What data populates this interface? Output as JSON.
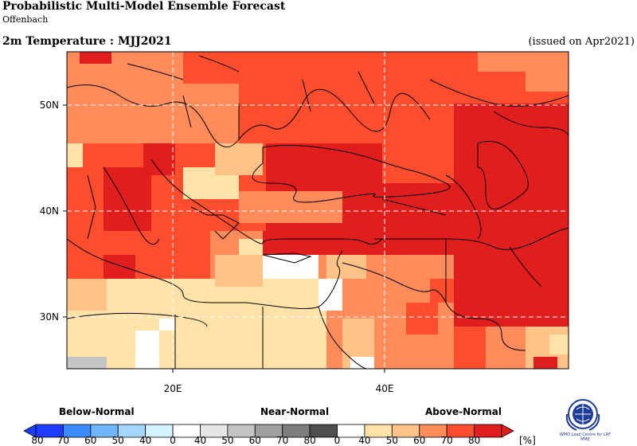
{
  "header": {
    "title": "Probabilistic Multi-Model Ensemble Forecast",
    "subtitle": "Offenbach",
    "variable": "2m Temperature : MJJ2021",
    "issued": "(issued on Apr2021)"
  },
  "map": {
    "region": "Eastern Mediterranean / Middle East",
    "lon_ticks": [
      "20E",
      "40E"
    ],
    "lat_ticks": [
      "50N",
      "40N",
      "30N"
    ],
    "grid": true
  },
  "legend": {
    "categories": [
      "Below-Normal",
      "Near-Normal",
      "Above-Normal"
    ],
    "below_labels": [
      "80",
      "70",
      "60",
      "50",
      "40"
    ],
    "near_labels": [
      "0",
      "40",
      "50",
      "60",
      "70",
      "80"
    ],
    "above_labels": [
      "0",
      "40",
      "50",
      "60",
      "70",
      "80"
    ],
    "unit": "[%]",
    "colors": {
      "below": [
        "#1e3cff",
        "#3a8cff",
        "#6fb6ff",
        "#a6d8ff",
        "#d4f4ff"
      ],
      "near": [
        "#ffffff",
        "#e6e6e6",
        "#c4c4c4",
        "#a0a0a0",
        "#7d7d7d",
        "#4e4e4e"
      ],
      "above": [
        "#ffffff",
        "#ffe2a8",
        "#ffc387",
        "#ff8c5a",
        "#ff4d2e",
        "#e01e1e"
      ]
    }
  },
  "logo": {
    "text": "WMO Lead Centre for LRF MME"
  }
}
